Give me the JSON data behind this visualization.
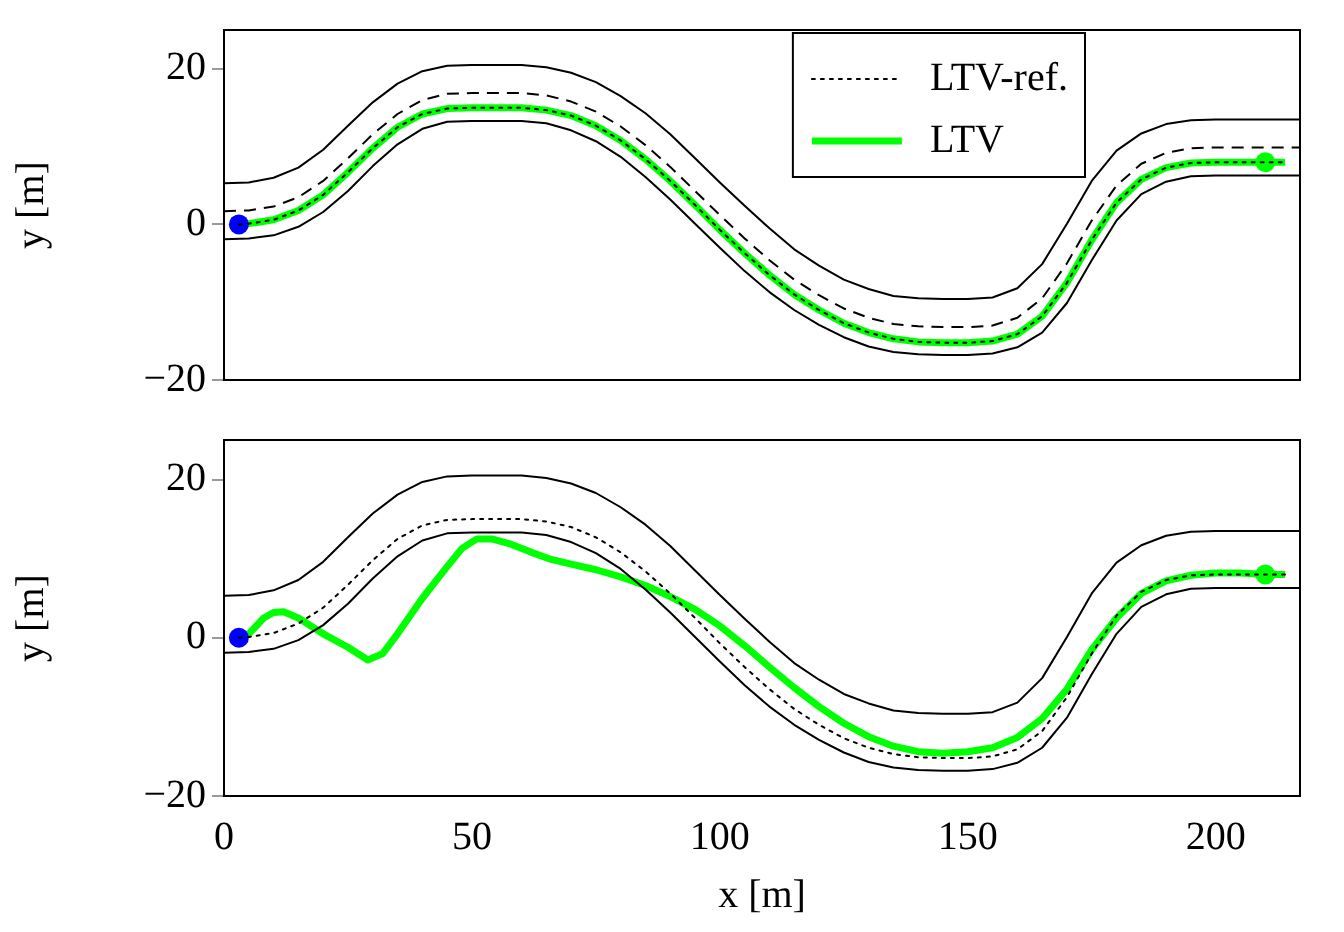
{
  "chart_data": [
    {
      "type": "line",
      "ylabel": "y [m]",
      "xlim": [
        0,
        217
      ],
      "ylim": [
        -20,
        25
      ],
      "xticks": [
        0,
        50,
        100,
        150,
        200
      ],
      "yticks": [
        -20,
        0,
        20
      ],
      "tick_labels": "y",
      "legend": "top right",
      "grid": false,
      "marker": "none",
      "series": [
        {
          "color": "#000000",
          "line_style": "solid",
          "x": [
            0,
            5,
            10,
            15,
            20,
            25,
            30,
            35,
            40,
            45,
            50,
            55,
            60,
            65,
            70,
            75,
            80,
            85,
            90,
            95,
            100,
            105,
            110,
            115,
            120,
            125,
            130,
            135,
            140,
            145,
            150,
            155,
            160,
            165,
            170,
            175,
            180,
            185,
            190,
            195,
            200,
            217
          ],
          "values": [
            5.3,
            5.4,
            6.0,
            7.3,
            9.6,
            12.7,
            15.7,
            18.1,
            19.7,
            20.4,
            20.5,
            20.5,
            20.5,
            20.2,
            19.5,
            18.3,
            16.5,
            14.3,
            11.6,
            8.5,
            5.4,
            2.4,
            -0.5,
            -3.2,
            -5.3,
            -7.1,
            -8.3,
            -9.2,
            -9.5,
            -9.6,
            -9.6,
            -9.4,
            -8.2,
            -5.1,
            0.1,
            5.6,
            9.5,
            11.7,
            12.9,
            13.4,
            13.5,
            13.5
          ]
        },
        {
          "color": "#000000",
          "line_style": "solid",
          "x": [
            0,
            5,
            10,
            15,
            20,
            25,
            30,
            35,
            40,
            45,
            50,
            55,
            60,
            65,
            70,
            75,
            80,
            85,
            90,
            95,
            100,
            105,
            110,
            115,
            120,
            125,
            130,
            135,
            140,
            145,
            150,
            155,
            160,
            165,
            170,
            175,
            180,
            185,
            190,
            195,
            200,
            217
          ],
          "values": [
            -1.9,
            -1.8,
            -1.4,
            -0.3,
            1.6,
            4.3,
            7.5,
            10.3,
            12.3,
            13.2,
            13.3,
            13.3,
            13.3,
            13.0,
            12.1,
            10.7,
            8.7,
            6.1,
            3.2,
            0.1,
            -3.0,
            -6.0,
            -8.7,
            -11.0,
            -12.9,
            -14.5,
            -15.7,
            -16.4,
            -16.7,
            -16.8,
            -16.8,
            -16.6,
            -15.8,
            -13.9,
            -10.1,
            -4.6,
            0.5,
            3.9,
            5.5,
            6.2,
            6.3,
            6.3
          ]
        },
        {
          "color": "#000000",
          "line_style": "dashed",
          "x": [
            0,
            5,
            10,
            15,
            20,
            25,
            30,
            35,
            40,
            45,
            50,
            55,
            60,
            65,
            70,
            75,
            80,
            85,
            90,
            95,
            100,
            105,
            110,
            115,
            120,
            125,
            130,
            135,
            140,
            145,
            150,
            155,
            160,
            165,
            170,
            175,
            180,
            185,
            190,
            195,
            200,
            217
          ],
          "values": [
            1.7,
            1.8,
            2.3,
            3.5,
            5.6,
            8.5,
            11.6,
            14.2,
            16,
            16.8,
            16.9,
            16.9,
            16.9,
            16.6,
            15.8,
            14.5,
            12.6,
            10.2,
            7.4,
            4.3,
            1.2,
            -1.8,
            -4.6,
            -7.1,
            -9.1,
            -10.8,
            -12,
            -12.8,
            -13.1,
            -13.2,
            -13.2,
            -13,
            -12,
            -9.5,
            -5,
            0.5,
            5,
            7.8,
            9.2,
            9.8,
            9.9,
            9.9
          ]
        },
        {
          "name": "LTV",
          "color": "#00ff00",
          "line_style": "solid",
          "x": [
            3,
            5,
            10,
            15,
            20,
            25,
            30,
            35,
            40,
            45,
            50,
            55,
            60,
            65,
            70,
            75,
            80,
            85,
            90,
            95,
            100,
            105,
            110,
            115,
            120,
            125,
            130,
            135,
            140,
            145,
            150,
            155,
            160,
            165,
            170,
            175,
            180,
            185,
            190,
            195,
            200,
            214
          ],
          "values": [
            0,
            0.1,
            0.6,
            1.8,
            3.8,
            6.7,
            9.8,
            12.5,
            14.2,
            14.9,
            15,
            15,
            15,
            14.7,
            14.0,
            12.7,
            10.8,
            8.4,
            5.6,
            2.5,
            -0.7,
            -3.7,
            -6.5,
            -9,
            -11,
            -12.7,
            -13.9,
            -14.7,
            -15.1,
            -15.2,
            -15.2,
            -15,
            -14.1,
            -11.8,
            -7.5,
            -2,
            2.8,
            5.8,
            7.3,
            7.9,
            8.0,
            8.0
          ]
        },
        {
          "name": "LTV-ref.",
          "color": "#000000",
          "line_style": "dotted",
          "x": [
            3,
            5,
            10,
            15,
            20,
            25,
            30,
            35,
            40,
            45,
            50,
            55,
            60,
            65,
            70,
            75,
            80,
            85,
            90,
            95,
            100,
            105,
            110,
            115,
            120,
            125,
            130,
            135,
            140,
            145,
            150,
            155,
            160,
            165,
            170,
            175,
            180,
            185,
            190,
            195,
            200,
            214
          ],
          "values": [
            0,
            0.1,
            0.6,
            1.8,
            3.8,
            6.7,
            9.8,
            12.5,
            14.2,
            14.9,
            15,
            15,
            15,
            14.7,
            14.0,
            12.7,
            10.8,
            8.4,
            5.6,
            2.5,
            -0.7,
            -3.7,
            -6.5,
            -9,
            -11,
            -12.7,
            -13.9,
            -14.7,
            -15.1,
            -15.2,
            -15.2,
            -15,
            -14.1,
            -11.8,
            -7.5,
            -2,
            2.8,
            5.8,
            7.3,
            7.9,
            8.0,
            8.0
          ]
        },
        {
          "type": "scatter",
          "marker": "circle",
          "color": "#0000ff",
          "x": [
            3
          ],
          "values": [
            0
          ]
        },
        {
          "type": "scatter",
          "marker": "circle",
          "color": "#00ff00",
          "x": [
            210
          ],
          "values": [
            8
          ]
        }
      ]
    },
    {
      "type": "line",
      "xlabel": "x [m]",
      "ylabel": "y [m]",
      "xlim": [
        0,
        217
      ],
      "ylim": [
        -20,
        25
      ],
      "xticks": [
        0,
        50,
        100,
        150,
        200
      ],
      "yticks": [
        -20,
        0,
        20
      ],
      "grid": false,
      "marker": "none",
      "series": [
        {
          "color": "#000000",
          "line_style": "solid",
          "x": [
            0,
            5,
            10,
            15,
            20,
            25,
            30,
            35,
            40,
            45,
            50,
            55,
            60,
            65,
            70,
            75,
            80,
            85,
            90,
            95,
            100,
            105,
            110,
            115,
            120,
            125,
            130,
            135,
            140,
            145,
            150,
            155,
            160,
            165,
            170,
            175,
            180,
            185,
            190,
            195,
            200,
            217
          ],
          "values": [
            5.3,
            5.4,
            6.0,
            7.3,
            9.6,
            12.7,
            15.7,
            18.1,
            19.7,
            20.4,
            20.5,
            20.5,
            20.5,
            20.2,
            19.5,
            18.3,
            16.5,
            14.3,
            11.6,
            8.5,
            5.4,
            2.4,
            -0.5,
            -3.2,
            -5.3,
            -7.1,
            -8.3,
            -9.2,
            -9.5,
            -9.6,
            -9.6,
            -9.4,
            -8.2,
            -5.1,
            0.1,
            5.6,
            9.5,
            11.7,
            12.9,
            13.4,
            13.5,
            13.5
          ]
        },
        {
          "color": "#000000",
          "line_style": "solid",
          "x": [
            0,
            5,
            10,
            15,
            20,
            25,
            30,
            35,
            40,
            45,
            50,
            55,
            60,
            65,
            70,
            75,
            80,
            85,
            90,
            95,
            100,
            105,
            110,
            115,
            120,
            125,
            130,
            135,
            140,
            145,
            150,
            155,
            160,
            165,
            170,
            175,
            180,
            185,
            190,
            195,
            200,
            217
          ],
          "values": [
            -1.9,
            -1.8,
            -1.4,
            -0.3,
            1.6,
            4.3,
            7.5,
            10.3,
            12.3,
            13.2,
            13.3,
            13.3,
            13.3,
            13.0,
            12.1,
            10.7,
            8.7,
            6.1,
            3.2,
            0.1,
            -3.0,
            -6.0,
            -8.7,
            -11.0,
            -12.9,
            -14.5,
            -15.7,
            -16.4,
            -16.7,
            -16.8,
            -16.8,
            -16.6,
            -15.8,
            -13.9,
            -10.1,
            -4.6,
            0.5,
            3.9,
            5.5,
            6.2,
            6.3,
            6.3
          ]
        },
        {
          "color": "#000000",
          "line_style": "dotted",
          "x": [
            3,
            5,
            10,
            15,
            20,
            25,
            30,
            35,
            40,
            45,
            50,
            55,
            60,
            65,
            70,
            75,
            80,
            85,
            90,
            95,
            100,
            105,
            110,
            115,
            120,
            125,
            130,
            135,
            140,
            145,
            150,
            155,
            160,
            165,
            170,
            175,
            180,
            185,
            190,
            195,
            200,
            214
          ],
          "values": [
            0,
            0.1,
            0.6,
            1.8,
            3.8,
            6.7,
            9.8,
            12.5,
            14.2,
            14.9,
            15,
            15,
            15,
            14.7,
            14.0,
            12.7,
            10.8,
            8.4,
            5.6,
            2.5,
            -0.7,
            -3.7,
            -6.5,
            -9,
            -11,
            -12.7,
            -13.9,
            -14.7,
            -15.1,
            -15.2,
            -15.2,
            -15,
            -14.1,
            -11.8,
            -7.5,
            -2,
            2.8,
            5.8,
            7.3,
            7.9,
            8.0,
            8.0
          ]
        },
        {
          "color": "#00ff00",
          "line_style": "solid",
          "x": [
            3,
            5,
            8,
            10,
            12,
            15,
            20,
            25,
            29,
            32,
            35,
            40,
            45,
            48,
            51,
            54,
            58,
            62,
            66,
            70,
            75,
            80,
            85,
            90,
            95,
            100,
            105,
            110,
            115,
            120,
            125,
            130,
            135,
            140,
            145,
            150,
            155,
            160,
            165,
            170,
            175,
            180,
            185,
            190,
            195,
            200,
            205,
            210,
            214
          ],
          "values": [
            0,
            0.5,
            2.5,
            3.2,
            3.3,
            2.5,
            0.5,
            -1.2,
            -2.8,
            -2,
            0.5,
            5,
            9,
            11.3,
            12.5,
            12.5,
            11.8,
            10.8,
            9.9,
            9.3,
            8.6,
            7.7,
            6.6,
            5.2,
            3.6,
            1.5,
            -1.0,
            -3.7,
            -6.3,
            -8.7,
            -10.8,
            -12.5,
            -13.7,
            -14.4,
            -14.6,
            -14.4,
            -13.9,
            -12.6,
            -10.2,
            -6.5,
            -1.5,
            2.5,
            5.6,
            7.2,
            7.9,
            8.2,
            8.2,
            8.0,
            8.0
          ]
        },
        {
          "type": "scatter",
          "marker": "circle",
          "color": "#0000ff",
          "x": [
            3
          ],
          "values": [
            0
          ]
        },
        {
          "type": "scatter",
          "marker": "circle",
          "color": "#00ff00",
          "x": [
            210
          ],
          "values": [
            8
          ]
        }
      ]
    }
  ]
}
